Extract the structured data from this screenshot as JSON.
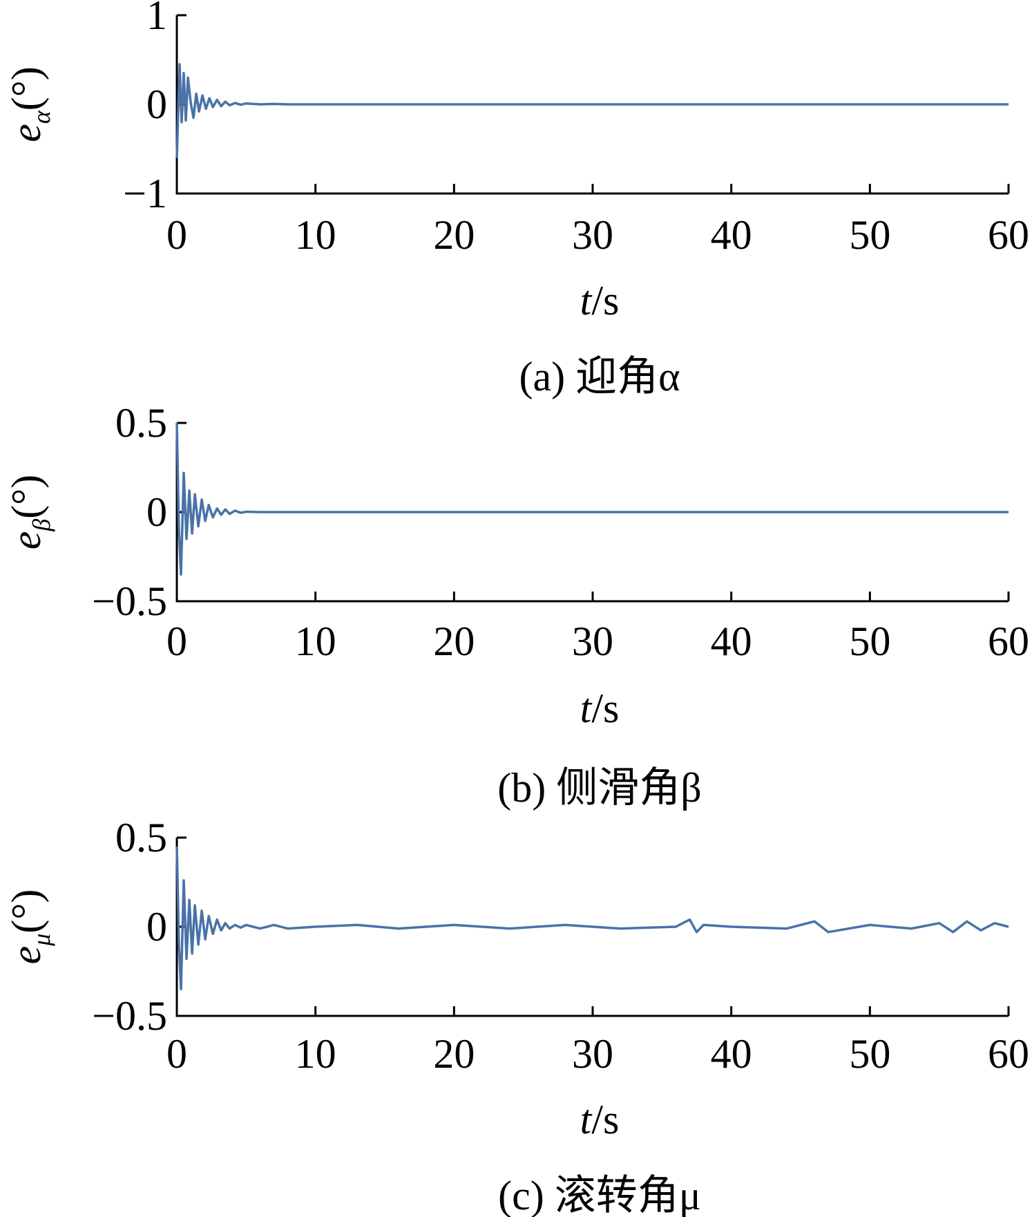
{
  "chart_data": [
    {
      "type": "line",
      "panel": "a",
      "ylabel_main": "e",
      "ylabel_sub": "α",
      "ylabel_unit": "(°)",
      "xlabel_italic": "t",
      "xlabel_rest": "/s",
      "caption": "(a) 迎角α",
      "xlim": [
        0,
        60
      ],
      "ylim": [
        -1,
        1
      ],
      "xticks": [
        "0",
        "10",
        "20",
        "30",
        "40",
        "50",
        "60"
      ],
      "yticks": [
        "1",
        "0",
        "−1"
      ],
      "ytick_values": [
        1,
        0,
        -1
      ],
      "series": [
        {
          "color": "#4a72a8",
          "x": [
            0,
            0.2,
            0.35,
            0.5,
            0.65,
            0.8,
            1.0,
            1.2,
            1.4,
            1.6,
            1.85,
            2.1,
            2.35,
            2.6,
            2.9,
            3.2,
            3.5,
            3.8,
            4.2,
            4.6,
            5.0,
            6,
            7,
            8,
            10,
            15,
            20,
            25,
            30,
            35,
            40,
            45,
            50,
            55,
            60
          ],
          "y": [
            -0.6,
            0.45,
            -0.2,
            0.35,
            -0.18,
            0.3,
            0.02,
            -0.15,
            0.12,
            -0.08,
            0.1,
            -0.05,
            0.07,
            -0.03,
            0.05,
            -0.02,
            0.03,
            -0.01,
            0.015,
            -0.005,
            0.01,
            0.0,
            0.005,
            0.0,
            0.0,
            0.0,
            0.0,
            0.0,
            0.0,
            0.0,
            0.0,
            0.0,
            0.0,
            0.0,
            0.0
          ]
        }
      ]
    },
    {
      "type": "line",
      "panel": "b",
      "ylabel_main": "e",
      "ylabel_sub": "β",
      "ylabel_unit": "(°)",
      "xlabel_italic": "t",
      "xlabel_rest": "/s",
      "caption": "(b) 侧滑角β",
      "xlim": [
        0,
        60
      ],
      "ylim": [
        -0.5,
        0.5
      ],
      "xticks": [
        "0",
        "10",
        "20",
        "30",
        "40",
        "50",
        "60"
      ],
      "yticks": [
        "0.5",
        "0",
        "−0.5"
      ],
      "ytick_values": [
        0.5,
        0,
        -0.5
      ],
      "series": [
        {
          "color": "#4a72a8",
          "x": [
            0,
            0.15,
            0.3,
            0.5,
            0.7,
            0.9,
            1.1,
            1.3,
            1.55,
            1.8,
            2.05,
            2.3,
            2.6,
            2.9,
            3.2,
            3.5,
            3.8,
            4.2,
            4.6,
            5.0,
            6,
            8,
            10,
            15,
            20,
            25,
            30,
            35,
            40,
            45,
            50,
            55,
            60
          ],
          "y": [
            0.5,
            -0.1,
            -0.35,
            0.22,
            -0.15,
            0.12,
            -0.12,
            0.1,
            -0.08,
            0.07,
            -0.05,
            0.04,
            -0.03,
            0.02,
            -0.015,
            0.015,
            -0.01,
            0.008,
            -0.004,
            0.002,
            0.0,
            0.0,
            0.0,
            0.0,
            0.0,
            0.0,
            0.0,
            0.0,
            0.0,
            0.0,
            0.0,
            0.0,
            0.0
          ]
        }
      ]
    },
    {
      "type": "line",
      "panel": "c",
      "ylabel_main": "e",
      "ylabel_sub": "μ",
      "ylabel_unit": "(°)",
      "xlabel_italic": "t",
      "xlabel_rest": "/s",
      "caption": "(c) 滚转角μ",
      "xlim": [
        0,
        60
      ],
      "ylim": [
        -0.5,
        0.5
      ],
      "xticks": [
        "0",
        "10",
        "20",
        "30",
        "40",
        "50",
        "60"
      ],
      "yticks": [
        "0.5",
        "0",
        "−0.5"
      ],
      "ytick_values": [
        0.5,
        0,
        -0.5
      ],
      "series": [
        {
          "color": "#4a72a8",
          "x": [
            0,
            0.15,
            0.3,
            0.5,
            0.7,
            0.9,
            1.1,
            1.3,
            1.55,
            1.8,
            2.05,
            2.3,
            2.6,
            2.9,
            3.2,
            3.5,
            3.8,
            4.2,
            4.6,
            5.0,
            6,
            7,
            8,
            10,
            13,
            16,
            20,
            24,
            28,
            32,
            36,
            37,
            37.5,
            38,
            40,
            44,
            46,
            47,
            50,
            53,
            55,
            56,
            57,
            58,
            59,
            60
          ],
          "y": [
            0.45,
            -0.1,
            -0.35,
            0.26,
            -0.18,
            0.15,
            -0.15,
            0.12,
            -0.1,
            0.09,
            -0.07,
            0.06,
            -0.04,
            0.04,
            -0.02,
            0.02,
            -0.01,
            0.01,
            -0.005,
            0.01,
            -0.01,
            0.01,
            -0.01,
            0.0,
            0.01,
            -0.01,
            0.01,
            -0.01,
            0.01,
            -0.01,
            0.0,
            0.04,
            -0.03,
            0.01,
            0.0,
            -0.01,
            0.03,
            -0.03,
            0.01,
            -0.01,
            0.02,
            -0.03,
            0.03,
            -0.02,
            0.02,
            0.0
          ]
        }
      ]
    }
  ]
}
